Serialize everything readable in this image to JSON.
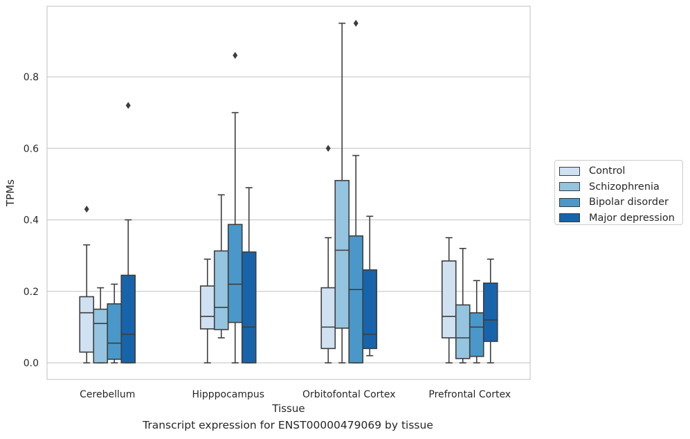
{
  "caption": "Transcript expression for ENST00000479069 by tissue",
  "chart_data": {
    "type": "box",
    "xlabel": "Tissue",
    "ylabel": "TPMs",
    "ylim": [
      -0.045,
      0.99
    ],
    "yticks": [
      0.0,
      0.2,
      0.4,
      0.6,
      0.8
    ],
    "ytick_labels": [
      "0.0",
      "0.2",
      "0.4",
      "0.6",
      "0.8"
    ],
    "grid": "horizontal",
    "legend_position": "right",
    "categories": [
      "Cerebellum",
      "Hipppocampus",
      "Orbitofontal Cortex",
      "Prefrontal Cortex"
    ],
    "series": [
      {
        "name": "Control",
        "color": "#d0e1f2",
        "boxes": [
          {
            "whislo": 0.0,
            "q1": 0.03,
            "med": 0.14,
            "q3": 0.185,
            "whishi": 0.33,
            "fliers": [
              0.43
            ]
          },
          {
            "whislo": 0.0,
            "q1": 0.095,
            "med": 0.13,
            "q3": 0.215,
            "whishi": 0.29,
            "fliers": []
          },
          {
            "whislo": 0.0,
            "q1": 0.04,
            "med": 0.1,
            "q3": 0.21,
            "whishi": 0.35,
            "fliers": [
              0.6
            ]
          },
          {
            "whislo": 0.0,
            "q1": 0.07,
            "med": 0.13,
            "q3": 0.285,
            "whishi": 0.35,
            "fliers": []
          }
        ]
      },
      {
        "name": "Schizophrenia",
        "color": "#94c4df",
        "boxes": [
          {
            "whislo": 0.0,
            "q1": 0.0,
            "med": 0.11,
            "q3": 0.15,
            "whishi": 0.21,
            "fliers": []
          },
          {
            "whislo": 0.07,
            "q1": 0.093,
            "med": 0.155,
            "q3": 0.313,
            "whishi": 0.47,
            "fliers": []
          },
          {
            "whislo": 0.0,
            "q1": 0.097,
            "med": 0.315,
            "q3": 0.51,
            "whishi": 0.95,
            "fliers": []
          },
          {
            "whislo": 0.0,
            "q1": 0.012,
            "med": 0.07,
            "q3": 0.162,
            "whishi": 0.32,
            "fliers": []
          }
        ]
      },
      {
        "name": "Bipolar disorder",
        "color": "#4a98c9",
        "boxes": [
          {
            "whislo": 0.0,
            "q1": 0.01,
            "med": 0.055,
            "q3": 0.165,
            "whishi": 0.22,
            "fliers": []
          },
          {
            "whislo": 0.0,
            "q1": 0.113,
            "med": 0.22,
            "q3": 0.387,
            "whishi": 0.7,
            "fliers": [
              0.86
            ]
          },
          {
            "whislo": 0.0,
            "q1": 0.0,
            "med": 0.205,
            "q3": 0.355,
            "whishi": 0.58,
            "fliers": [
              0.95
            ]
          },
          {
            "whislo": 0.0,
            "q1": 0.018,
            "med": 0.1,
            "q3": 0.14,
            "whishi": 0.23,
            "fliers": []
          }
        ]
      },
      {
        "name": "Major depression",
        "color": "#1764ab",
        "boxes": [
          {
            "whislo": 0.0,
            "q1": 0.0,
            "med": 0.08,
            "q3": 0.245,
            "whishi": 0.4,
            "fliers": [
              0.72
            ]
          },
          {
            "whislo": 0.0,
            "q1": 0.0,
            "med": 0.1,
            "q3": 0.31,
            "whishi": 0.49,
            "fliers": []
          },
          {
            "whislo": 0.02,
            "q1": 0.04,
            "med": 0.08,
            "q3": 0.26,
            "whishi": 0.41,
            "fliers": []
          },
          {
            "whislo": 0.0,
            "q1": 0.06,
            "med": 0.12,
            "q3": 0.223,
            "whishi": 0.29,
            "fliers": []
          }
        ]
      }
    ]
  }
}
